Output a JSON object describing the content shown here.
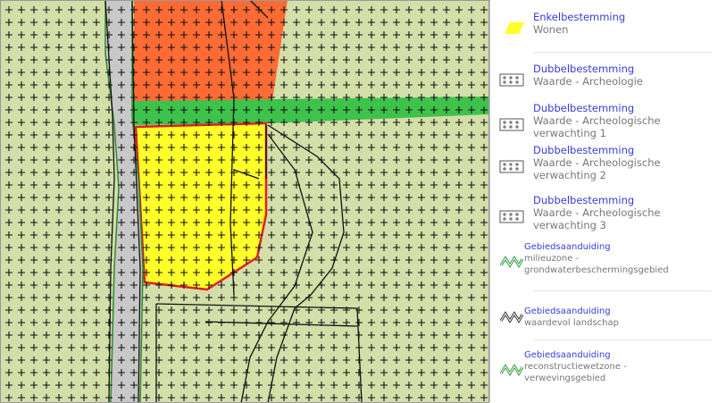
{
  "legend": {
    "entries": [
      {
        "title": "Enkelbestemming",
        "label": "Wonen"
      },
      {
        "title": "Dubbelbestemming",
        "label": "Waarde - Archeologie"
      },
      {
        "title": "Dubbelbestemming",
        "label": "Waarde - Archeologische verwachting 1"
      },
      {
        "title": "Dubbelbestemming",
        "label": "Waarde - Archeologische verwachting 2"
      },
      {
        "title": "Dubbelbestemming",
        "label": "Waarde - Archeologische verwachting 3"
      },
      {
        "title": "Gebiedsaanduiding",
        "label": "milieuzone - grondwaterbeschermingsgebied"
      },
      {
        "title": "Gebiedsaanduiding",
        "label": "waardevol landschap"
      },
      {
        "title": "Gebiedsaanduiding",
        "label": "reconstructiewetzone - verwevingsgebied"
      }
    ]
  }
}
